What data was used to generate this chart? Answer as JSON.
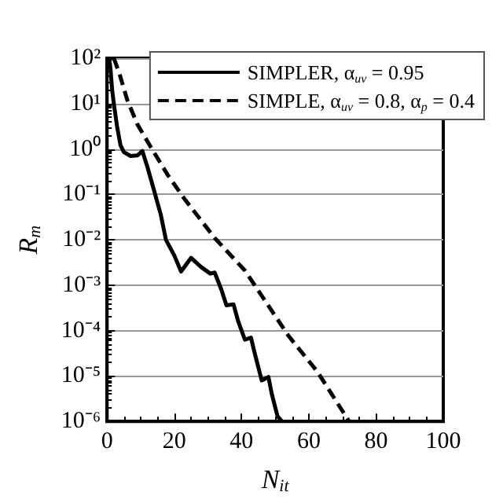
{
  "chart_data": {
    "type": "line",
    "xlabel": "N$_{it}$",
    "ylabel": "R$_{m}$",
    "xlim": [
      0,
      100
    ],
    "xticks": [
      0,
      20,
      40,
      60,
      80,
      100
    ],
    "ylim": [
      1e-06,
      100
    ],
    "yticks": [
      {
        "value": 1e-06,
        "label": "10⁻⁶"
      },
      {
        "value": 1e-05,
        "label": "10⁻⁵"
      },
      {
        "value": 0.0001,
        "label": "10⁻⁴"
      },
      {
        "value": 0.001,
        "label": "10⁻³"
      },
      {
        "value": 0.01,
        "label": "10⁻²"
      },
      {
        "value": 0.1,
        "label": "10⁻¹"
      },
      {
        "value": 1,
        "label": "10⁰"
      },
      {
        "value": 10,
        "label": "10¹"
      },
      {
        "value": 100,
        "label": "10²"
      }
    ],
    "log": "y",
    "grid": "y",
    "legend": "top right",
    "marker": "none",
    "series": [
      {
        "name": "SIMPLER, α$_{uv}$ = 0.95",
        "color": "#000000",
        "line_style": "solid",
        "x": [
          0.5,
          1,
          1.5,
          2,
          3,
          4,
          5,
          7,
          9,
          10.5,
          12,
          14,
          16,
          17.5,
          20,
          22,
          25,
          28,
          30.7,
          32,
          34,
          35.5,
          37.6,
          39,
          41,
          42.8,
          44,
          46,
          48,
          49,
          50.7,
          52
        ],
        "values": [
          100,
          60,
          20,
          10,
          3,
          1.2,
          0.85,
          0.7,
          0.72,
          0.9,
          0.4,
          0.12,
          0.035,
          0.01,
          0.0045,
          0.002,
          0.004,
          0.0025,
          0.0018,
          0.0019,
          0.0008,
          0.00036,
          0.00038,
          0.00016,
          6.3e-05,
          7e-05,
          3e-05,
          8e-06,
          9.5e-06,
          4e-06,
          1.3e-06,
          1e-06
        ]
      },
      {
        "name": "SIMPLE, α$_{uv}$ = 0.8, α$_{p}$ = 0.4",
        "color": "#000000",
        "line_style": "dashed",
        "x": [
          2,
          3.7,
          6,
          9,
          12.7,
          18,
          23,
          32,
          41,
          54,
          62.5,
          72
        ],
        "values": [
          100,
          45,
          12,
          3.5,
          1.2,
          0.27,
          0.08,
          0.011,
          0.0021,
          7.6e-05,
          1.26e-05,
          1e-06
        ]
      }
    ]
  }
}
